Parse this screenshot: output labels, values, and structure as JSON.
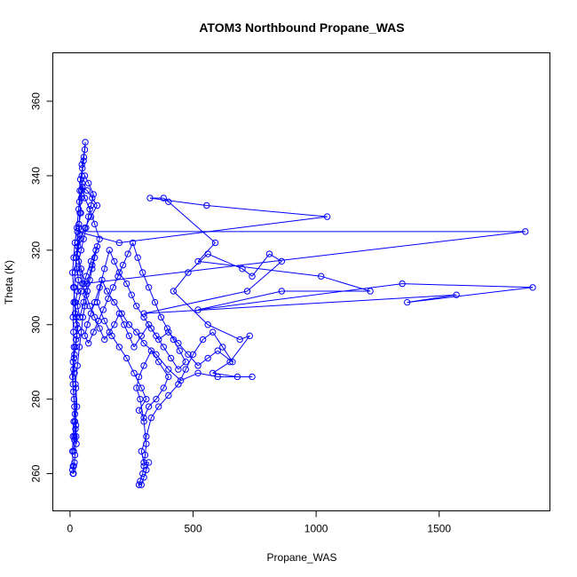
{
  "chart_data": {
    "type": "scatter",
    "mode": "lines+markers",
    "title": "ATOM3 Northbound Propane_WAS",
    "xlabel": "Propane_WAS",
    "ylabel": "Theta (K)",
    "xlim": [
      -70,
      1950
    ],
    "ylim": [
      250,
      373
    ],
    "xticks": [
      0,
      500,
      1000,
      1500
    ],
    "yticks": [
      260,
      280,
      300,
      320,
      340,
      360
    ],
    "grid": false,
    "series": [
      {
        "color": "#0000ff",
        "marker": "open-circle",
        "points": [
          [
            10,
            261
          ],
          [
            15,
            262
          ],
          [
            12,
            260
          ],
          [
            18,
            263
          ],
          [
            20,
            265
          ],
          [
            25,
            270
          ],
          [
            22,
            272
          ],
          [
            18,
            269
          ],
          [
            15,
            266
          ],
          [
            20,
            274
          ],
          [
            28,
            278
          ],
          [
            24,
            283
          ],
          [
            18,
            287
          ],
          [
            16,
            291
          ],
          [
            22,
            294
          ],
          [
            28,
            297
          ],
          [
            26,
            300
          ],
          [
            20,
            303
          ],
          [
            22,
            306
          ],
          [
            30,
            309
          ],
          [
            34,
            312
          ],
          [
            28,
            315
          ],
          [
            24,
            318
          ],
          [
            32,
            321
          ],
          [
            40,
            324
          ],
          [
            36,
            327
          ],
          [
            44,
            330
          ],
          [
            38,
            333
          ],
          [
            46,
            336
          ],
          [
            42,
            339
          ],
          [
            50,
            342
          ],
          [
            56,
            345
          ],
          [
            48,
            343
          ],
          [
            60,
            347
          ],
          [
            62,
            349
          ],
          [
            55,
            344
          ],
          [
            48,
            340
          ],
          [
            40,
            336
          ],
          [
            35,
            331
          ],
          [
            28,
            326
          ],
          [
            20,
            322
          ],
          [
            15,
            318
          ],
          [
            10,
            314
          ],
          [
            14,
            310
          ],
          [
            20,
            306
          ],
          [
            26,
            302
          ],
          [
            32,
            299
          ],
          [
            24,
            296
          ],
          [
            18,
            292
          ],
          [
            14,
            288
          ],
          [
            12,
            284
          ],
          [
            16,
            280
          ],
          [
            20,
            276
          ],
          [
            24,
            273
          ],
          [
            18,
            270
          ],
          [
            26,
            268
          ],
          [
            22,
            284
          ],
          [
            30,
            289
          ],
          [
            38,
            294
          ],
          [
            46,
            298
          ],
          [
            52,
            302
          ],
          [
            60,
            305
          ],
          [
            70,
            309
          ],
          [
            80,
            312
          ],
          [
            90,
            315
          ],
          [
            100,
            318
          ],
          [
            110,
            321
          ],
          [
            90,
            316
          ],
          [
            70,
            311
          ],
          [
            55,
            306
          ],
          [
            40,
            302
          ],
          [
            30,
            305
          ],
          [
            45,
            309
          ],
          [
            65,
            313
          ],
          [
            85,
            317
          ],
          [
            105,
            320
          ],
          [
            120,
            323
          ],
          [
            100,
            327
          ],
          [
            80,
            331
          ],
          [
            60,
            334
          ],
          [
            50,
            337
          ],
          [
            70,
            336
          ],
          [
            90,
            334
          ],
          [
            110,
            332
          ],
          [
            85,
            329
          ],
          [
            60,
            326
          ],
          [
            40,
            323
          ],
          [
            30,
            319
          ],
          [
            45,
            315
          ],
          [
            55,
            311
          ],
          [
            1850,
            325
          ],
          [
            30,
            325
          ],
          [
            200,
            322
          ],
          [
            1045,
            329
          ],
          [
            555,
            332
          ],
          [
            325,
            334
          ],
          [
            380,
            334
          ],
          [
            400,
            333
          ],
          [
            590,
            322
          ],
          [
            520,
            317
          ],
          [
            1020,
            313
          ],
          [
            1220,
            309
          ],
          [
            860,
            309
          ],
          [
            520,
            304
          ],
          [
            1350,
            311
          ],
          [
            1880,
            310
          ],
          [
            1370,
            306
          ],
          [
            1570,
            308
          ],
          [
            300,
            303
          ],
          [
            720,
            309
          ],
          [
            860,
            317
          ],
          [
            810,
            319
          ],
          [
            740,
            313
          ],
          [
            700,
            315
          ],
          [
            560,
            319
          ],
          [
            480,
            314
          ],
          [
            420,
            309
          ],
          [
            560,
            300
          ],
          [
            690,
            296
          ],
          [
            730,
            297
          ],
          [
            650,
            290
          ],
          [
            580,
            287
          ],
          [
            680,
            286
          ],
          [
            740,
            286
          ],
          [
            600,
            286
          ],
          [
            520,
            287
          ],
          [
            450,
            285
          ],
          [
            400,
            288
          ],
          [
            350,
            292
          ],
          [
            300,
            295
          ],
          [
            270,
            298
          ],
          [
            240,
            300
          ],
          [
            210,
            303
          ],
          [
            180,
            306
          ],
          [
            150,
            309
          ],
          [
            130,
            312
          ],
          [
            110,
            306
          ],
          [
            140,
            301
          ],
          [
            170,
            297
          ],
          [
            200,
            294
          ],
          [
            230,
            291
          ],
          [
            260,
            287
          ],
          [
            290,
            283
          ],
          [
            310,
            280
          ],
          [
            280,
            277
          ],
          [
            300,
            275
          ],
          [
            320,
            278
          ],
          [
            350,
            280
          ],
          [
            380,
            283
          ],
          [
            400,
            286
          ],
          [
            360,
            290
          ],
          [
            330,
            293
          ],
          [
            300,
            289
          ],
          [
            280,
            286
          ],
          [
            270,
            283
          ],
          [
            285,
            280
          ],
          [
            300,
            274
          ],
          [
            310,
            268
          ],
          [
            305,
            265
          ],
          [
            300,
            262
          ],
          [
            295,
            260
          ],
          [
            285,
            258
          ],
          [
            280,
            257
          ],
          [
            290,
            257
          ],
          [
            300,
            259
          ],
          [
            310,
            261
          ],
          [
            320,
            263
          ],
          [
            300,
            263
          ],
          [
            290,
            266
          ],
          [
            310,
            270
          ],
          [
            330,
            275
          ],
          [
            360,
            278
          ],
          [
            400,
            281
          ],
          [
            440,
            284
          ],
          [
            470,
            288
          ],
          [
            500,
            292
          ],
          [
            540,
            296
          ],
          [
            580,
            298
          ],
          [
            620,
            294
          ],
          [
            660,
            290
          ],
          [
            600,
            293
          ],
          [
            560,
            291
          ],
          [
            520,
            289
          ],
          [
            480,
            292
          ],
          [
            440,
            295
          ],
          [
            400,
            298
          ],
          [
            360,
            296
          ],
          [
            330,
            299
          ],
          [
            300,
            302
          ],
          [
            270,
            305
          ],
          [
            250,
            308
          ],
          [
            230,
            311
          ],
          [
            200,
            314
          ],
          [
            180,
            317
          ],
          [
            160,
            320
          ],
          [
            140,
            315
          ],
          [
            120,
            310
          ],
          [
            100,
            306
          ],
          [
            85,
            303
          ],
          [
            70,
            300
          ],
          [
            60,
            297
          ],
          [
            75,
            295
          ],
          [
            95,
            298
          ],
          [
            115,
            301
          ],
          [
            135,
            304
          ],
          [
            155,
            307
          ],
          [
            175,
            310
          ],
          [
            195,
            313
          ],
          [
            215,
            316
          ],
          [
            235,
            319
          ],
          [
            255,
            322
          ],
          [
            275,
            318
          ],
          [
            295,
            314
          ],
          [
            320,
            310
          ],
          [
            345,
            306
          ],
          [
            370,
            302
          ],
          [
            395,
            299
          ],
          [
            420,
            296
          ],
          [
            445,
            293
          ],
          [
            470,
            290
          ],
          [
            440,
            288
          ],
          [
            410,
            291
          ],
          [
            380,
            294
          ],
          [
            350,
            297
          ],
          [
            320,
            300
          ],
          [
            290,
            297
          ],
          [
            260,
            294
          ],
          [
            240,
            297
          ],
          [
            220,
            300
          ],
          [
            200,
            303
          ],
          [
            180,
            300
          ],
          [
            160,
            298
          ],
          [
            140,
            296
          ],
          [
            120,
            299
          ],
          [
            100,
            302
          ],
          [
            80,
            305
          ],
          [
            65,
            308
          ],
          [
            50,
            311
          ],
          [
            40,
            314
          ],
          [
            35,
            317
          ],
          [
            45,
            320
          ],
          [
            55,
            323
          ],
          [
            65,
            326
          ],
          [
            75,
            329
          ],
          [
            85,
            332
          ],
          [
            95,
            335
          ],
          [
            75,
            338
          ],
          [
            60,
            340
          ],
          [
            50,
            338
          ],
          [
            45,
            334
          ],
          [
            40,
            330
          ],
          [
            35,
            326
          ],
          [
            30,
            322
          ],
          [
            25,
            318
          ],
          [
            20,
            314
          ],
          [
            18,
            310
          ],
          [
            15,
            306
          ],
          [
            12,
            302
          ],
          [
            14,
            298
          ],
          [
            16,
            294
          ],
          [
            12,
            290
          ],
          [
            10,
            286
          ],
          [
            14,
            282
          ],
          [
            18,
            278
          ],
          [
            15,
            274
          ],
          [
            12,
            270
          ],
          [
            10,
            266
          ],
          [
            12,
            262
          ],
          [
            14,
            260
          ]
        ]
      }
    ]
  }
}
